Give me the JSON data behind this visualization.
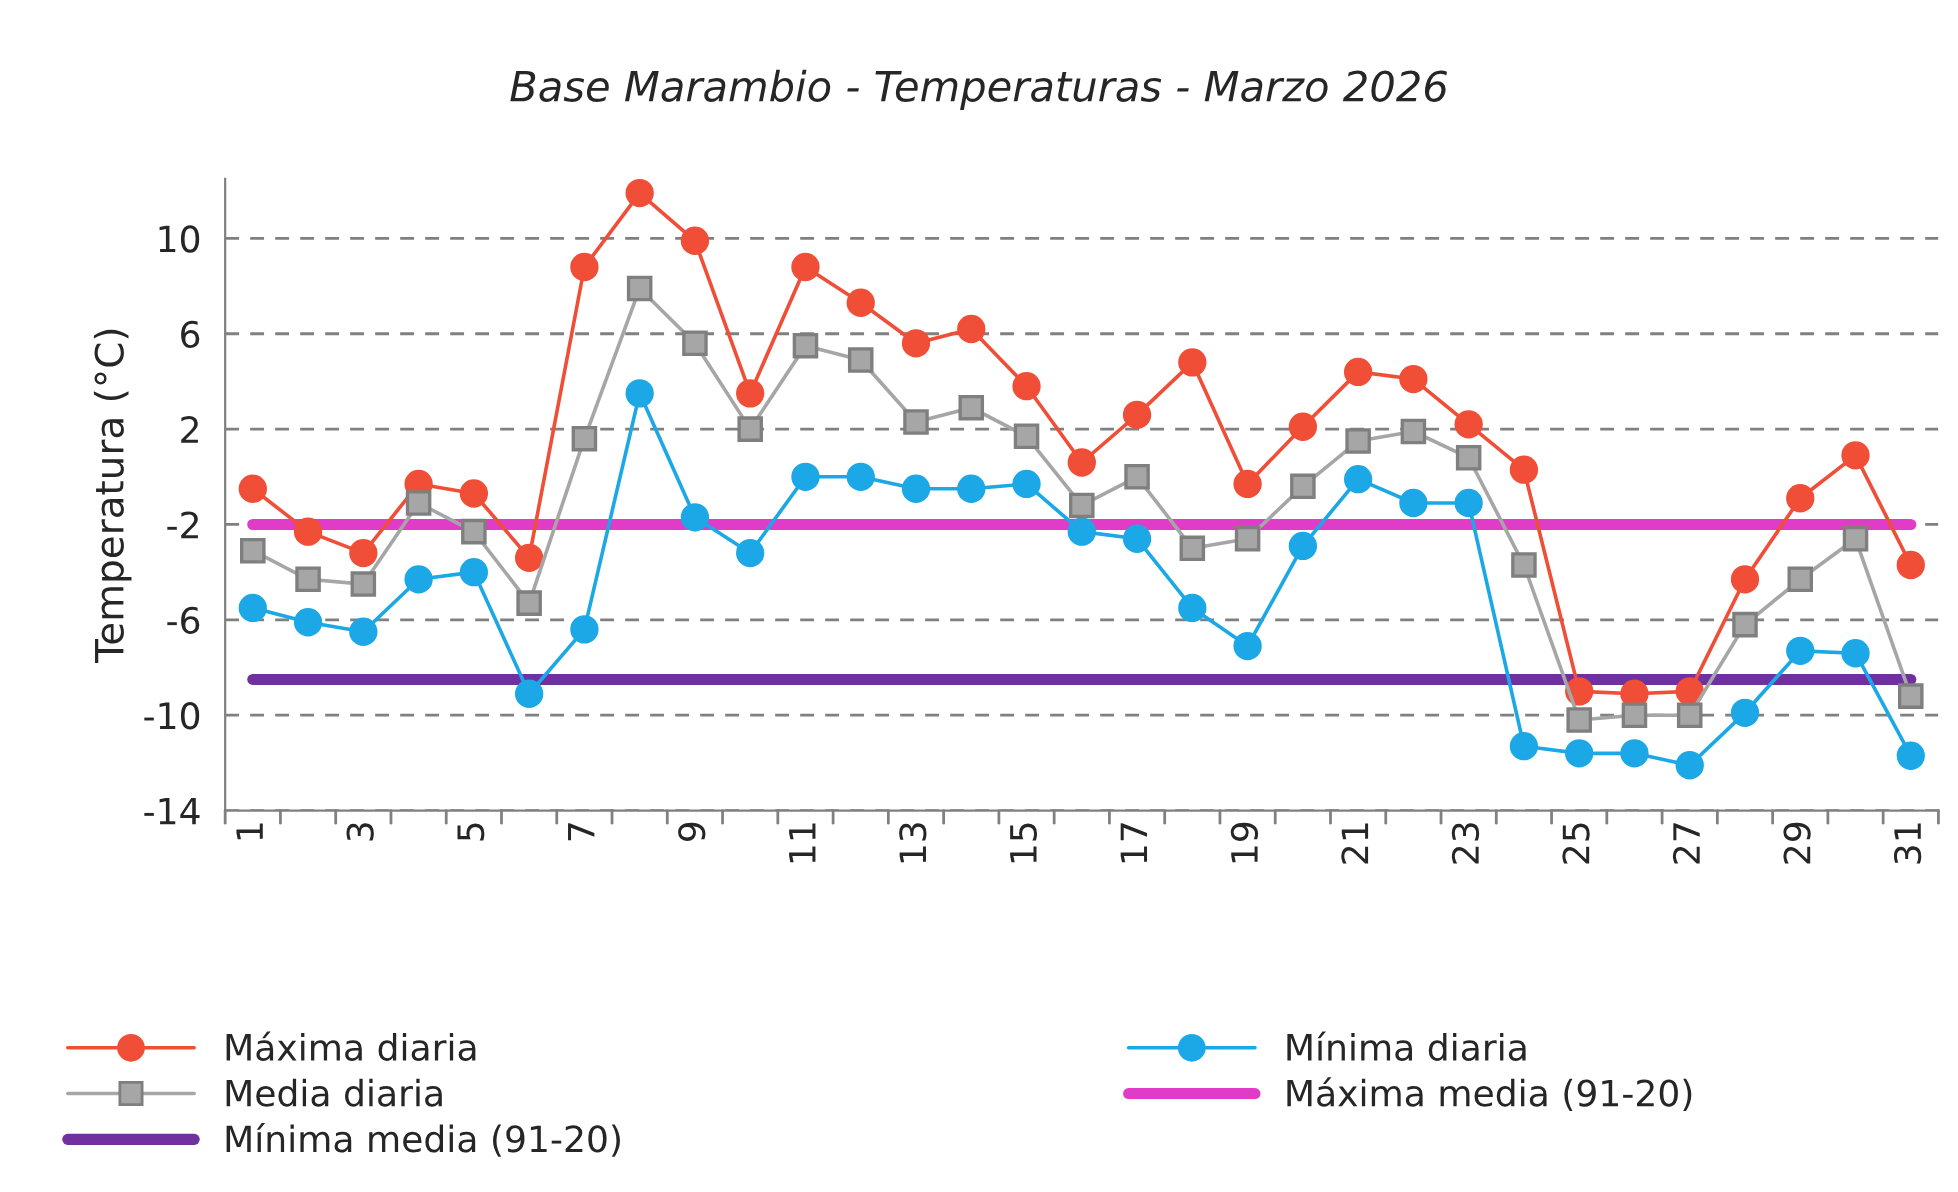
{
  "chart_data": {
    "type": "line",
    "title": "Base Marambio - Temperaturas - Marzo 2026",
    "ylabel": "Temperatura (°C)",
    "categories": [
      "1",
      null,
      "3",
      null,
      "5",
      null,
      "7",
      null,
      "9",
      null,
      "11",
      null,
      "13",
      null,
      "15",
      null,
      "17",
      null,
      "19",
      null,
      "21",
      null,
      "23",
      null,
      "25",
      null,
      "27",
      null,
      "29",
      null,
      "31"
    ],
    "series": [
      {
        "name": "Máxima diaria",
        "color": "#f04e37",
        "marker": "circle",
        "values": [
          -0.5,
          -2.3,
          -3.2,
          -0.3,
          -0.7,
          -3.4,
          8.8,
          11.9,
          9.9,
          3.5,
          8.8,
          7.3,
          5.6,
          6.2,
          3.8,
          0.6,
          2.6,
          4.8,
          -0.3,
          2.1,
          4.4,
          4.1,
          2.2,
          0.3,
          -9.0,
          -9.1,
          -9.0,
          -4.3,
          -0.9,
          0.9,
          -3.7
        ]
      },
      {
        "name": "Mínima diaria",
        "color": "#1ca8e6",
        "marker": "circle",
        "values": [
          -5.5,
          -6.1,
          -6.5,
          -4.3,
          -4.0,
          -9.1,
          -6.4,
          3.5,
          -1.7,
          -3.2,
          0.0,
          0.0,
          -0.5,
          -0.5,
          -0.3,
          -2.3,
          -2.6,
          -5.5,
          -7.1,
          -2.9,
          -0.1,
          -1.1,
          -1.1,
          -11.3,
          -11.6,
          -11.6,
          -12.1,
          -9.9,
          -7.3,
          -7.4,
          -11.7
        ]
      },
      {
        "name": "Media diaria",
        "color": "#a6a6a6",
        "marker": "square",
        "values": [
          -3.1,
          -4.3,
          -4.5,
          -1.1,
          -2.3,
          -5.3,
          1.6,
          7.9,
          5.6,
          2.0,
          5.5,
          4.9,
          2.3,
          2.9,
          1.7,
          -1.2,
          0.0,
          -3.0,
          -2.6,
          -0.4,
          1.5,
          1.9,
          0.8,
          -3.7,
          -10.2,
          -10.0,
          -10.0,
          -6.2,
          -4.3,
          -2.6,
          -9.2
        ]
      },
      {
        "name": "Máxima media (91-20)",
        "color": "#e03cc8",
        "marker": "none",
        "values": [
          -2.0,
          -2.0,
          -2.0,
          -2.0,
          -2.0,
          -2.0,
          -2.0,
          -2.0,
          -2.0,
          -2.0,
          -2.0,
          -2.0,
          -2.0,
          -2.0,
          -2.0,
          -2.0,
          -2.0,
          -2.0,
          -2.0,
          -2.0,
          -2.0,
          -2.0,
          -2.0,
          -2.0,
          -2.0,
          -2.0,
          -2.0,
          -2.0,
          -2.0,
          -2.0,
          -2.0
        ]
      },
      {
        "name": "Mínima media (91-20)",
        "color": "#7030a0",
        "marker": "none",
        "values": [
          -8.5,
          -8.5,
          -8.5,
          -8.5,
          -8.5,
          -8.5,
          -8.5,
          -8.5,
          -8.5,
          -8.5,
          -8.5,
          -8.5,
          -8.5,
          -8.5,
          -8.5,
          -8.5,
          -8.5,
          -8.5,
          -8.5,
          -8.5,
          -8.5,
          -8.5,
          -8.5,
          -8.5,
          -8.5,
          -8.5,
          -8.5,
          -8.5,
          -8.5,
          -8.5,
          -8.5
        ]
      }
    ],
    "ylim": [
      -14,
      12.5
    ],
    "yticks": [
      -14,
      -10,
      -6,
      -2,
      2,
      6,
      10
    ],
    "grid": "y",
    "legend": "bottom",
    "line_style": "solid"
  }
}
